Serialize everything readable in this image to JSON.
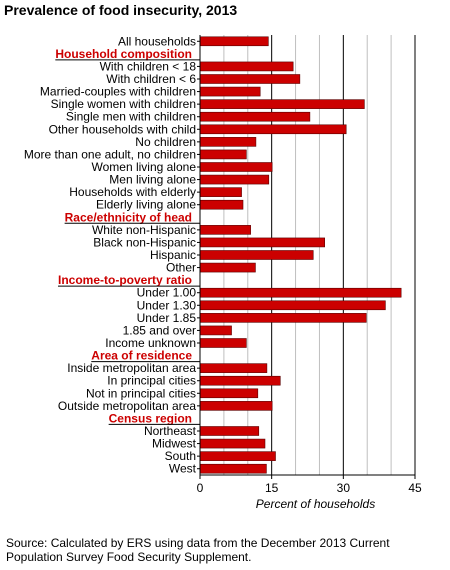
{
  "chart_data": {
    "type": "bar",
    "orientation": "horizontal",
    "title": "Prevalence of food insecurity, 2013",
    "xlabel": "Percent of households",
    "ylabel": "",
    "xlim": [
      0,
      45
    ],
    "xticks": [
      "0",
      "15",
      "30",
      "45"
    ],
    "grid": "vertical gridlines every 5",
    "bar_color": "#cc0000",
    "heading_color": "#cc0000",
    "rows": [
      {
        "label": "All households",
        "value": 14.3,
        "heading": false
      },
      {
        "label": "Household composition",
        "value": null,
        "heading": true
      },
      {
        "label": "With children < 18",
        "value": 19.5,
        "heading": false
      },
      {
        "label": "With children < 6",
        "value": 20.9,
        "heading": false
      },
      {
        "label": "Married-couples with children",
        "value": 12.6,
        "heading": false
      },
      {
        "label": "Single women with children",
        "value": 34.4,
        "heading": false
      },
      {
        "label": "Single men with children",
        "value": 23.0,
        "heading": false
      },
      {
        "label": "Other households with child",
        "value": 30.6,
        "heading": false
      },
      {
        "label": "No children",
        "value": 11.7,
        "heading": false
      },
      {
        "label": "More than one adult, no children",
        "value": 9.7,
        "heading": false
      },
      {
        "label": "Women living alone",
        "value": 15.1,
        "heading": false
      },
      {
        "label": "Men living alone",
        "value": 14.4,
        "heading": false
      },
      {
        "label": "Households with elderly",
        "value": 8.7,
        "heading": false
      },
      {
        "label": "Elderly living alone",
        "value": 9.0,
        "heading": false
      },
      {
        "label": "Race/ethnicity of head",
        "value": null,
        "heading": true
      },
      {
        "label": "White non-Hispanic",
        "value": 10.6,
        "heading": false
      },
      {
        "label": "Black non-Hispanic",
        "value": 26.1,
        "heading": false
      },
      {
        "label": "Hispanic",
        "value": 23.7,
        "heading": false
      },
      {
        "label": "Other",
        "value": 11.6,
        "heading": false
      },
      {
        "label": "Income-to-poverty ratio",
        "value": null,
        "heading": true
      },
      {
        "label": "Under 1.00",
        "value": 42.1,
        "heading": false
      },
      {
        "label": "Under 1.30",
        "value": 38.8,
        "heading": false
      },
      {
        "label": "Under 1.85",
        "value": 34.8,
        "heading": false
      },
      {
        "label": "1.85 and over",
        "value": 6.6,
        "heading": false
      },
      {
        "label": "Income unknown",
        "value": 9.7,
        "heading": false
      },
      {
        "label": "Area of residence",
        "value": null,
        "heading": true
      },
      {
        "label": "Inside metropolitan area",
        "value": 14.0,
        "heading": false
      },
      {
        "label": "In principal cities",
        "value": 16.8,
        "heading": false
      },
      {
        "label": "Not in principal cities",
        "value": 12.1,
        "heading": false
      },
      {
        "label": "Outside metropolitan area",
        "value": 15.1,
        "heading": false
      },
      {
        "label": "Census region",
        "value": null,
        "heading": true
      },
      {
        "label": "Northeast",
        "value": 12.3,
        "heading": false
      },
      {
        "label": "Midwest",
        "value": 13.6,
        "heading": false
      },
      {
        "label": "South",
        "value": 15.8,
        "heading": false
      },
      {
        "label": "West",
        "value": 13.9,
        "heading": false
      }
    ]
  },
  "footer": {
    "source": "Source: Calculated by ERS using data from the December 2013 Current Population Survey Food Security Supplement."
  }
}
